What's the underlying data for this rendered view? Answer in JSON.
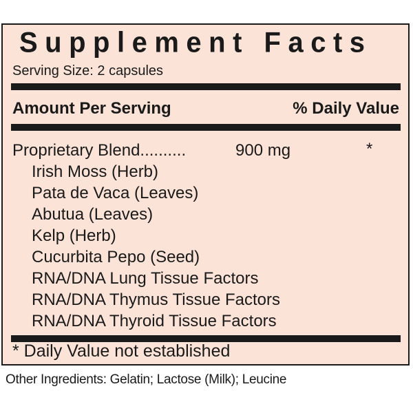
{
  "title": "Supplement Facts",
  "serving_size": "Serving Size: 2 capsules",
  "header": {
    "amount": "Amount Per Serving",
    "daily_value": "% Daily Value"
  },
  "blend": {
    "name": "Proprietary Blend..........",
    "amount": "900 mg",
    "dv": "*"
  },
  "ingredients": [
    "Irish Moss (Herb)",
    "Pata de Vaca (Leaves)",
    "Abutua (Leaves)",
    "Kelp (Herb)",
    "Cucurbita Pepo (Seed)",
    "RNA/DNA Lung Tissue Factors",
    "RNA/DNA Thymus Tissue Factors",
    "RNA/DNA Thyroid Tissue Factors"
  ],
  "footnote": "* Daily Value not established",
  "other_ingredients": "Other Ingredients: Gelatin; Lactose (Milk); Leucine",
  "colors": {
    "panel_bg": "#fbe3d8",
    "ink": "#1a1a1a"
  }
}
